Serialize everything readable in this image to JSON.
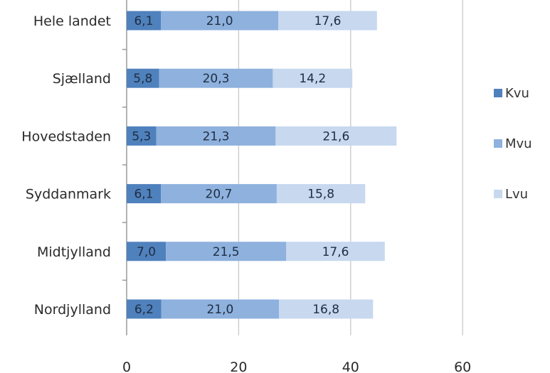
{
  "chart_data": {
    "type": "bar",
    "orientation": "horizontal",
    "stacked": true,
    "title": "",
    "xlabel": "",
    "ylabel": "",
    "categories": [
      "Hele landet",
      "Sjælland",
      "Hovedstaden",
      "Syddanmark",
      "Midtjylland",
      "Nordjylland"
    ],
    "series": [
      {
        "name": "Kvu",
        "color": "#4f81bd",
        "values": [
          6.1,
          5.8,
          5.3,
          6.1,
          7.0,
          6.2
        ],
        "labels": [
          "6,1",
          "5,8",
          "5,3",
          "6,1",
          "7,0",
          "6,2"
        ]
      },
      {
        "name": "Mvu",
        "color": "#8eb1de",
        "values": [
          21.0,
          20.3,
          21.3,
          20.7,
          21.5,
          21.0
        ],
        "labels": [
          "21,0",
          "20,3",
          "21,3",
          "20,7",
          "21,5",
          "21,0"
        ]
      },
      {
        "name": "Lvu",
        "color": "#c7d8ef",
        "values": [
          17.6,
          14.2,
          21.6,
          15.8,
          17.6,
          16.8
        ],
        "labels": [
          "17,6",
          "14,2",
          "21,6",
          "15,8",
          "17,6",
          "16,8"
        ]
      }
    ],
    "xlim": [
      0,
      60
    ],
    "xticks": [
      0,
      20,
      40,
      60
    ],
    "xtick_labels": [
      "0",
      "20",
      "40",
      "60"
    ],
    "grid": true,
    "legend_position": "right"
  }
}
